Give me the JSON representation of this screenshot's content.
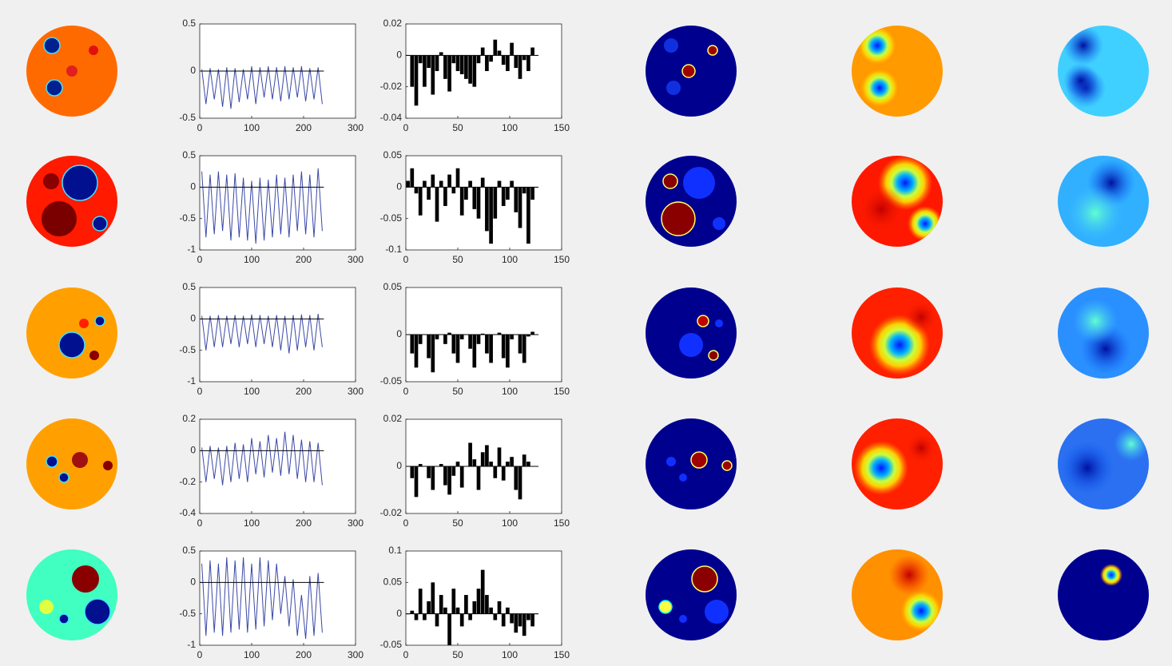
{
  "chart_data": [
    {
      "type": "line",
      "color": "#3a48a6",
      "x": [
        4,
        12,
        20,
        28,
        36,
        44,
        52,
        60,
        68,
        76,
        84,
        92,
        100,
        108,
        116,
        124,
        132,
        140,
        148,
        156,
        164,
        172,
        180,
        188,
        196,
        204,
        212,
        220,
        228,
        236
      ],
      "values": [
        0.02,
        -0.35,
        0.03,
        -0.3,
        0.02,
        -0.38,
        0.04,
        -0.4,
        0.03,
        -0.33,
        0.02,
        -0.3,
        0.05,
        -0.35,
        0.04,
        -0.28,
        0.05,
        -0.3,
        0.04,
        -0.32,
        0.05,
        -0.3,
        0.04,
        -0.28,
        0.05,
        -0.32,
        0.03,
        -0.3,
        0.04,
        -0.35
      ],
      "xlim": [
        0,
        300
      ],
      "xticks": [
        0,
        100,
        200,
        300
      ],
      "ylim": [
        -0.5,
        0.5
      ],
      "yticks": [
        -0.5,
        0,
        0.5
      ]
    },
    {
      "type": "bar",
      "color": "#000000",
      "x": [
        2,
        6,
        10,
        14,
        18,
        22,
        26,
        30,
        34,
        38,
        42,
        46,
        50,
        54,
        58,
        62,
        66,
        70,
        74,
        78,
        82,
        86,
        90,
        94,
        98,
        102,
        106,
        110,
        114,
        118,
        122,
        126
      ],
      "values": [
        0,
        -0.02,
        -0.032,
        -0.005,
        -0.02,
        -0.008,
        -0.025,
        -0.01,
        0.002,
        -0.015,
        -0.023,
        -0.005,
        -0.01,
        -0.012,
        -0.015,
        -0.018,
        -0.02,
        -0.005,
        0.005,
        -0.01,
        -0.004,
        0.01,
        0.003,
        -0.006,
        -0.01,
        0.008,
        -0.008,
        -0.015,
        -0.003,
        -0.01,
        0.005,
        0
      ],
      "xlim": [
        0,
        150
      ],
      "xticks": [
        0,
        50,
        100,
        150
      ],
      "ylim": [
        -0.04,
        0.02
      ],
      "yticks": [
        -0.04,
        -0.02,
        0,
        0.02
      ]
    },
    {
      "type": "line",
      "color": "#3a48a6",
      "x": [
        4,
        12,
        20,
        28,
        36,
        44,
        52,
        60,
        68,
        76,
        84,
        92,
        100,
        108,
        116,
        124,
        132,
        140,
        148,
        156,
        164,
        172,
        180,
        188,
        196,
        204,
        212,
        220,
        228,
        236
      ],
      "values": [
        0.25,
        -0.8,
        0.2,
        -0.75,
        0.25,
        -0.7,
        0.2,
        -0.85,
        0.22,
        -0.8,
        0.15,
        -0.85,
        0.1,
        -0.9,
        0.15,
        -0.85,
        0.12,
        -0.8,
        0.2,
        -0.75,
        0.15,
        -0.8,
        0.2,
        -0.7,
        0.25,
        -0.75,
        0.2,
        -0.8,
        0.3,
        -0.7
      ],
      "xlim": [
        0,
        300
      ],
      "xticks": [
        0,
        100,
        200,
        300
      ],
      "ylim": [
        -1,
        0.5
      ],
      "yticks": [
        -1,
        -0.5,
        0,
        0.5
      ]
    },
    {
      "type": "bar",
      "color": "#000000",
      "x": [
        2,
        6,
        10,
        14,
        18,
        22,
        26,
        30,
        34,
        38,
        42,
        46,
        50,
        54,
        58,
        62,
        66,
        70,
        74,
        78,
        82,
        86,
        90,
        94,
        98,
        102,
        106,
        110,
        114,
        118,
        122,
        126
      ],
      "values": [
        0.01,
        0.03,
        -0.01,
        -0.045,
        0.01,
        -0.02,
        0.02,
        -0.055,
        0.01,
        -0.03,
        0.02,
        -0.01,
        0.03,
        -0.045,
        -0.02,
        0.01,
        -0.035,
        -0.05,
        0.015,
        -0.07,
        -0.09,
        -0.05,
        0.01,
        -0.03,
        -0.02,
        0.01,
        -0.04,
        -0.065,
        -0.01,
        -0.09,
        -0.02,
        0
      ],
      "xlim": [
        0,
        150
      ],
      "xticks": [
        0,
        50,
        100,
        150
      ],
      "ylim": [
        -0.1,
        0.05
      ],
      "yticks": [
        -0.1,
        -0.05,
        0,
        0.05
      ]
    },
    {
      "type": "line",
      "color": "#3a48a6",
      "x": [
        4,
        12,
        20,
        28,
        36,
        44,
        52,
        60,
        68,
        76,
        84,
        92,
        100,
        108,
        116,
        124,
        132,
        140,
        148,
        156,
        164,
        172,
        180,
        188,
        196,
        204,
        212,
        220,
        228,
        236
      ],
      "values": [
        0.05,
        -0.5,
        0.05,
        -0.45,
        0.06,
        -0.45,
        0.05,
        -0.4,
        0.06,
        -0.45,
        0.05,
        -0.4,
        0.07,
        -0.45,
        0.06,
        -0.4,
        0.05,
        -0.45,
        0.06,
        -0.5,
        0.05,
        -0.55,
        0.06,
        -0.5,
        0.07,
        -0.45,
        0.06,
        -0.5,
        0.08,
        -0.45
      ],
      "xlim": [
        0,
        300
      ],
      "xticks": [
        0,
        100,
        200,
        300
      ],
      "ylim": [
        -1,
        0.5
      ],
      "yticks": [
        -1,
        -0.5,
        0,
        0.5
      ]
    },
    {
      "type": "bar",
      "color": "#000000",
      "x": [
        2,
        6,
        10,
        14,
        18,
        22,
        26,
        30,
        34,
        38,
        42,
        46,
        50,
        54,
        58,
        62,
        66,
        70,
        74,
        78,
        82,
        86,
        90,
        94,
        98,
        102,
        106,
        110,
        114,
        118,
        122,
        126
      ],
      "values": [
        0,
        -0.02,
        -0.035,
        -0.01,
        0,
        -0.025,
        -0.04,
        -0.005,
        0,
        -0.01,
        0.002,
        -0.02,
        -0.03,
        -0.005,
        0,
        -0.015,
        -0.035,
        -0.01,
        0.001,
        -0.02,
        -0.03,
        0,
        0.002,
        -0.025,
        -0.035,
        -0.005,
        0,
        -0.02,
        -0.03,
        -0.002,
        0.003,
        0
      ],
      "xlim": [
        0,
        150
      ],
      "xticks": [
        0,
        50,
        100,
        150
      ],
      "ylim": [
        -0.05,
        0.05
      ],
      "yticks": [
        -0.05,
        0,
        0.05
      ]
    },
    {
      "type": "line",
      "color": "#3a48a6",
      "x": [
        4,
        12,
        20,
        28,
        36,
        44,
        52,
        60,
        68,
        76,
        84,
        92,
        100,
        108,
        116,
        124,
        132,
        140,
        148,
        156,
        164,
        172,
        180,
        188,
        196,
        204,
        212,
        220,
        228,
        236
      ],
      "values": [
        0.02,
        -0.2,
        0.03,
        -0.18,
        0.02,
        -0.22,
        0.03,
        -0.2,
        0.05,
        -0.18,
        0.04,
        -0.2,
        0.08,
        -0.15,
        0.06,
        -0.17,
        0.1,
        -0.14,
        0.08,
        -0.16,
        0.12,
        -0.15,
        0.1,
        -0.18,
        0.07,
        -0.2,
        0.06,
        -0.2,
        0.05,
        -0.22
      ],
      "xlim": [
        0,
        300
      ],
      "xticks": [
        0,
        100,
        200,
        300
      ],
      "ylim": [
        -0.4,
        0.2
      ],
      "yticks": [
        -0.4,
        -0.2,
        0,
        0.2
      ]
    },
    {
      "type": "bar",
      "color": "#000000",
      "x": [
        2,
        6,
        10,
        14,
        18,
        22,
        26,
        30,
        34,
        38,
        42,
        46,
        50,
        54,
        58,
        62,
        66,
        70,
        74,
        78,
        82,
        86,
        90,
        94,
        98,
        102,
        106,
        110,
        114,
        118,
        122,
        126
      ],
      "values": [
        0,
        -0.005,
        -0.013,
        0.001,
        0,
        -0.005,
        -0.01,
        0,
        0.001,
        -0.008,
        -0.012,
        -0.004,
        0.002,
        -0.009,
        0,
        0.01,
        0.003,
        -0.01,
        0.006,
        0.009,
        0.002,
        -0.005,
        0.008,
        -0.006,
        0.002,
        0.004,
        -0.01,
        -0.014,
        0.005,
        0.002,
        0,
        0
      ],
      "xlim": [
        0,
        150
      ],
      "xticks": [
        0,
        50,
        100,
        150
      ],
      "ylim": [
        -0.02,
        0.02
      ],
      "yticks": [
        -0.02,
        0,
        0.02
      ]
    },
    {
      "type": "line",
      "color": "#3a48a6",
      "x": [
        4,
        12,
        20,
        28,
        36,
        44,
        52,
        60,
        68,
        76,
        84,
        92,
        100,
        108,
        116,
        124,
        132,
        140,
        148,
        156,
        164,
        172,
        180,
        188,
        196,
        204,
        212,
        220,
        228,
        236
      ],
      "values": [
        0.3,
        -0.85,
        0.35,
        -0.8,
        0.3,
        -0.85,
        0.4,
        -0.8,
        0.35,
        -0.75,
        0.4,
        -0.8,
        0.3,
        -0.75,
        0.4,
        -0.7,
        0.35,
        -0.6,
        0.3,
        -0.5,
        0.1,
        -0.7,
        0.05,
        -0.85,
        -0.2,
        -0.9,
        0.1,
        -0.85,
        0.15,
        -0.8
      ],
      "xlim": [
        0,
        300
      ],
      "xticks": [
        0,
        100,
        200,
        300
      ],
      "ylim": [
        -1,
        0.5
      ],
      "yticks": [
        -1,
        -0.5,
        0,
        0.5
      ]
    },
    {
      "type": "bar",
      "color": "#000000",
      "x": [
        2,
        6,
        10,
        14,
        18,
        22,
        26,
        30,
        34,
        38,
        42,
        46,
        50,
        54,
        58,
        62,
        66,
        70,
        74,
        78,
        82,
        86,
        90,
        94,
        98,
        102,
        106,
        110,
        114,
        118,
        122,
        126
      ],
      "values": [
        0,
        0.005,
        -0.01,
        0.04,
        -0.01,
        0.02,
        0.05,
        -0.02,
        0.03,
        0.01,
        -0.05,
        0.04,
        0.01,
        -0.02,
        0.03,
        -0.01,
        0.02,
        0.04,
        0.07,
        0.03,
        0.01,
        -0.01,
        0.02,
        -0.02,
        0.01,
        -0.015,
        -0.03,
        -0.02,
        -0.035,
        -0.01,
        -0.02,
        0
      ],
      "xlim": [
        0,
        150
      ],
      "xticks": [
        0,
        50,
        100,
        150
      ],
      "ylim": [
        -0.05,
        0.1
      ],
      "yticks": [
        -0.05,
        0,
        0.05,
        0.1
      ]
    }
  ]
}
